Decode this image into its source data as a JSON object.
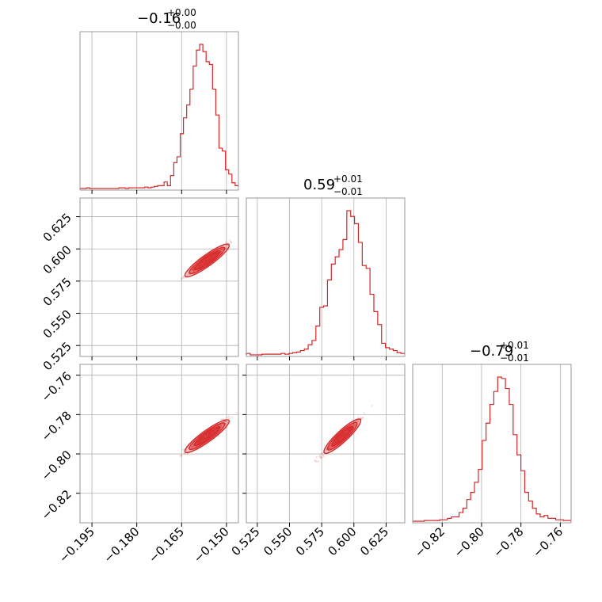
{
  "chart_data": {
    "type": "corner",
    "color": "#d62728",
    "grid": true,
    "parameters": [
      {
        "range": [
          -0.199,
          -0.146
        ],
        "ticks": [
          -0.195,
          -0.18,
          -0.165,
          -0.15
        ],
        "tick_labels": [
          "−0.195",
          "−0.180",
          "−0.165",
          "−0.150"
        ],
        "title": {
          "main": "−0.16",
          "sup": "+0.00",
          "sub": "−0.00"
        }
      },
      {
        "range": [
          0.5165,
          0.6395
        ],
        "ticks": [
          0.525,
          0.55,
          0.575,
          0.6,
          0.625
        ],
        "tick_labels": [
          "0.525",
          "0.550",
          "0.575",
          "0.600",
          "0.625"
        ],
        "title": {
          "main": "0.59",
          "sup": "+0.01",
          "sub": "−0.01"
        }
      },
      {
        "range": [
          -0.835,
          -0.7545
        ],
        "ticks": [
          -0.82,
          -0.8,
          -0.78,
          -0.76
        ],
        "tick_labels": [
          "−0.82",
          "−0.80",
          "−0.78",
          "−0.76"
        ],
        "title": {
          "main": "−0.79",
          "sup": "+0.01",
          "sub": "−0.01"
        }
      }
    ],
    "histograms": [
      [
        0.0,
        0.0,
        0.005,
        0.0,
        0.0,
        0.0,
        0.0,
        0.0,
        0.0,
        0.0,
        0.0,
        0.0,
        0.005,
        0.005,
        0.0,
        0.005,
        0.005,
        0.005,
        0.005,
        0.005,
        0.01,
        0.005,
        0.01,
        0.015,
        0.02,
        0.02,
        0.045,
        0.02,
        0.09,
        0.18,
        0.22,
        0.38,
        0.49,
        0.58,
        0.69,
        0.85,
        0.96,
        1.0,
        0.95,
        0.88,
        0.86,
        0.69,
        0.51,
        0.28,
        0.26,
        0.13,
        0.1,
        0.04,
        0.02
      ],
      [
        0.01,
        0.0,
        0.0,
        0.0,
        0.005,
        0.005,
        0.005,
        0.005,
        0.005,
        0.01,
        0.005,
        0.01,
        0.015,
        0.02,
        0.03,
        0.04,
        0.07,
        0.1,
        0.2,
        0.33,
        0.34,
        0.52,
        0.63,
        0.68,
        0.73,
        0.8,
        1.0,
        0.96,
        0.91,
        0.78,
        0.62,
        0.6,
        0.42,
        0.3,
        0.21,
        0.08,
        0.05,
        0.04,
        0.03,
        0.015,
        0.01
      ],
      [
        0.0,
        0.0,
        0.0,
        0.005,
        0.005,
        0.005,
        0.005,
        0.01,
        0.01,
        0.02,
        0.03,
        0.03,
        0.06,
        0.09,
        0.15,
        0.2,
        0.27,
        0.36,
        0.56,
        0.68,
        0.81,
        0.9,
        1.0,
        0.99,
        0.92,
        0.81,
        0.6,
        0.46,
        0.35,
        0.2,
        0.14,
        0.09,
        0.05,
        0.03,
        0.04,
        0.02,
        0.02,
        0.01,
        0.01,
        0.005,
        0.005
      ]
    ]
  }
}
